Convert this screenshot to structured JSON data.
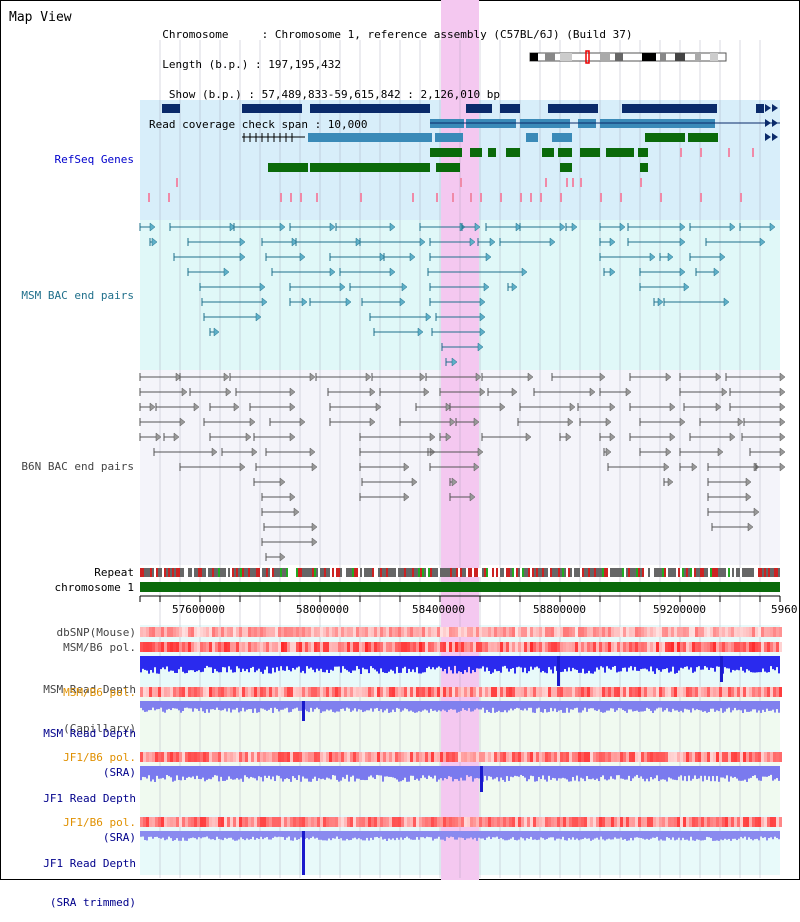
{
  "panel": {
    "title": "Map View",
    "info_lines": [
      "  Chromosome     : Chromosome 1, reference assembly (C57BL/6J) (Build 37)",
      "  Length (b.p.) : 197,195,432",
      "   Show (b.p.) : 57,489,833-59,615,842 : 2,126,010 bp",
      "Read coverage check span : 10,000"
    ]
  },
  "tracks": {
    "refseq": "RefSeq Genes",
    "msm_bac": "MSM BAC end pairs",
    "b6n_bac": "B6N BAC end pairs",
    "repeat": "Repeat",
    "chromosome": "chromosome 1",
    "dbsnp": "dbSNP(Mouse)",
    "msm_b6_pol_1": "MSM/B6 pol.",
    "msm_read_depth_cap_1": "MSM Read Depth",
    "msm_read_depth_cap_2": "(Capillary)",
    "msm_b6_pol_2": "MSM/B6 pol.",
    "msm_read_depth_sra_1": "MSM Read Depth",
    "msm_read_depth_sra_2": "(SRA)",
    "jf1_b6_pol_1": "JF1/B6 pol.",
    "jf1_read_depth_1": "JF1 Read Depth",
    "jf1_read_depth_2": "(SRA)",
    "jf1_b6_pol_2": "JF1/B6 pol.",
    "jf1_read_depth_trim_1": "JF1 Read Depth",
    "jf1_read_depth_trim_2": "(SRA trimmed)"
  },
  "axis": {
    "ticks": [
      "57600000",
      "58000000",
      "58400000",
      "58800000",
      "59200000",
      "5960"
    ]
  },
  "colors": {
    "highlight": "#f4c8f0",
    "refseq_bg": "#d8eefa",
    "msm_bg": "#e0f8f8",
    "b6n_bg": "#f4f4fa",
    "gene_dark": "#0a2a6a",
    "gene_mid": "#3a8ab8",
    "gene_green": "#0a6a0a"
  }
}
